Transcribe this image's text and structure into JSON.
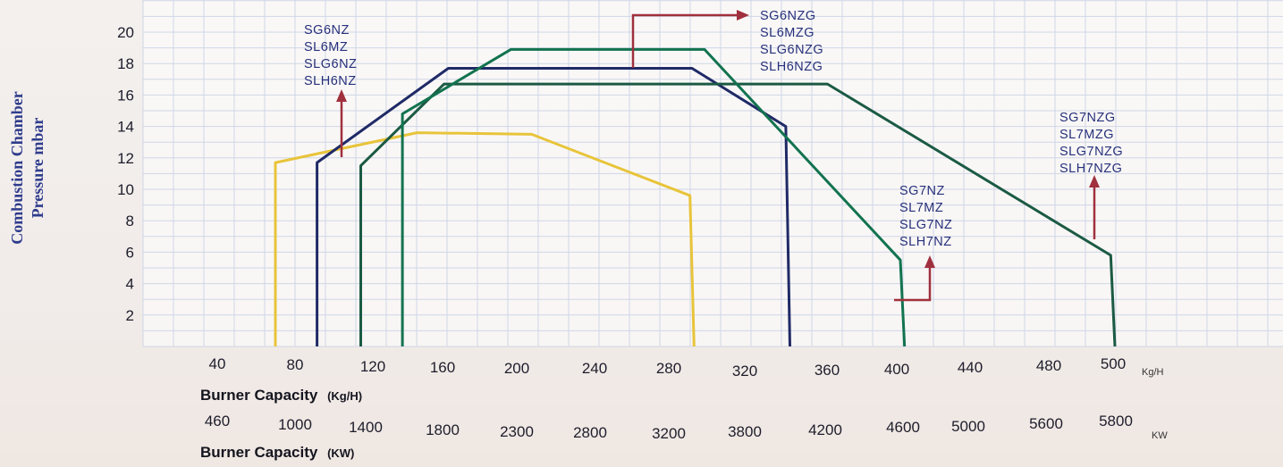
{
  "chart_data": {
    "type": "line",
    "ylabel_line1": "Combustion Chamber",
    "ylabel_line2": "Pressure mbar",
    "x_axis_kgh": {
      "title": "Burner Capacity",
      "title_unit": "(Kg/H)",
      "unit": "Kg/H",
      "ticks": [
        "40",
        "80",
        "120",
        "160",
        "200",
        "240",
        "280",
        "320",
        "360",
        "400",
        "440",
        "480",
        "500"
      ]
    },
    "x_axis_kw": {
      "title": "Burner Capacity",
      "title_unit": "(KW)",
      "unit": "KW",
      "ticks": [
        "460",
        "1000",
        "1400",
        "1800",
        "2300",
        "2800",
        "3200",
        "3800",
        "4200",
        "4600",
        "5000",
        "5600",
        "5800"
      ]
    },
    "y_axis": {
      "ticks": [
        "2",
        "4",
        "6",
        "8",
        "10",
        "12",
        "14",
        "16",
        "18",
        "20"
      ],
      "range": [
        0,
        20
      ]
    },
    "grid": true,
    "series": [
      {
        "color": "#e8c43a",
        "x": [
          97,
          97,
          165,
          220,
          296,
          298
        ],
        "y": [
          0,
          11.7,
          13.6,
          13.5,
          9.6,
          0
        ]
      },
      {
        "color": "#1f2a66",
        "x": [
          117,
          117,
          180,
          297,
          342,
          344
        ],
        "y": [
          0,
          11.7,
          17.7,
          17.7,
          14,
          0
        ]
      },
      {
        "color": "#1b5a44",
        "x": [
          138,
          138,
          178,
          362,
          498,
          500
        ],
        "y": [
          0,
          11.5,
          16.7,
          16.7,
          5.8,
          0
        ]
      },
      {
        "color": "#12734f",
        "x": [
          158,
          158,
          210,
          303,
          397,
          399
        ],
        "y": [
          0,
          14.8,
          18.9,
          18.9,
          5.5,
          0
        ]
      }
    ],
    "annotations": [
      {
        "color": "#26307a",
        "lines": [
          "SG6NZ",
          "SL6MZ",
          "SLG6NZ",
          "SLH6NZ"
        ]
      },
      {
        "color": "#26307a",
        "lines": [
          "SG6NZG",
          "SL6MZG",
          "SLG6NZG",
          "SLH6NZG"
        ]
      },
      {
        "color": "#26307a",
        "lines": [
          "SG7NZ",
          "SL7MZ",
          "SLG7NZ",
          "SLH7NZ"
        ]
      },
      {
        "color": "#26307a",
        "lines": [
          "SG7NZG",
          "SL7MZG",
          "SLG7NZG",
          "SLH7NZG"
        ]
      }
    ],
    "pointer_color": "#a0303d"
  }
}
